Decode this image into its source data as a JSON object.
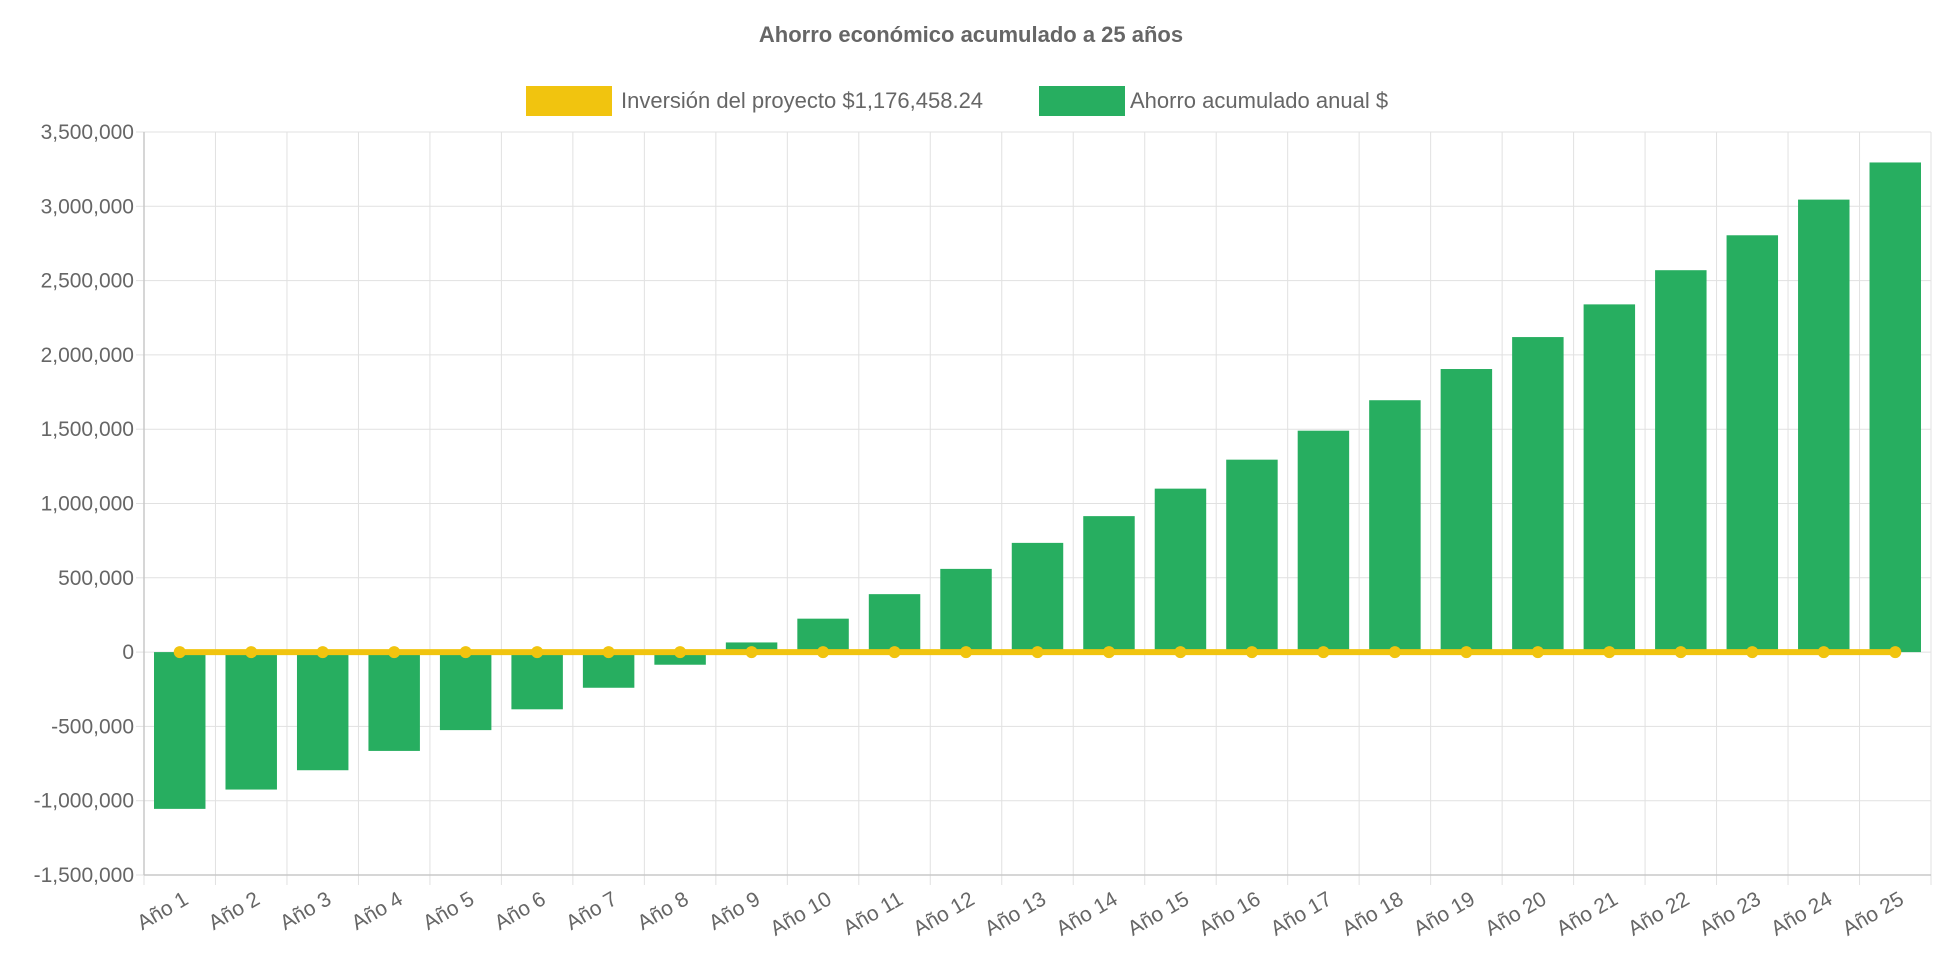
{
  "chart_data": {
    "type": "bar",
    "title": "Ahorro económico acumulado a 25 años",
    "categories": [
      "Año 1",
      "Año 2",
      "Año 3",
      "Año 4",
      "Año 5",
      "Año 6",
      "Año 7",
      "Año 8",
      "Año 9",
      "Año 10",
      "Año 11",
      "Año 12",
      "Año 13",
      "Año 14",
      "Año 15",
      "Año 16",
      "Año 17",
      "Año 18",
      "Año 19",
      "Año 20",
      "Año 21",
      "Año 22",
      "Año 23",
      "Año 24",
      "Año 25"
    ],
    "series": [
      {
        "name": "Inversión del proyecto $1,176,458.24",
        "type": "line",
        "color": "#f1c40f",
        "values": [
          0,
          0,
          0,
          0,
          0,
          0,
          0,
          0,
          0,
          0,
          0,
          0,
          0,
          0,
          0,
          0,
          0,
          0,
          0,
          0,
          0,
          0,
          0,
          0,
          0
        ]
      },
      {
        "name": "Ahorro acumulado anual $",
        "type": "bar",
        "color": "#27ae60",
        "values": [
          -1055000,
          -925000,
          -795000,
          -665000,
          -525000,
          -385000,
          -240000,
          -85000,
          65000,
          225000,
          390000,
          560000,
          735000,
          915000,
          1100000,
          1295000,
          1490000,
          1695000,
          1905000,
          2120000,
          2340000,
          2570000,
          2805000,
          3045000,
          3295000
        ]
      }
    ],
    "ylim": [
      -1500000,
      3500000
    ],
    "yticks": [
      3500000,
      3000000,
      2500000,
      2000000,
      1500000,
      1000000,
      500000,
      0,
      -500000,
      -1000000,
      -1500000
    ],
    "ytick_labels": [
      "3,500,000",
      "3,000,000",
      "2,500,000",
      "2,000,000",
      "1,500,000",
      "1,000,000",
      "500,000",
      "0",
      "-500,000",
      "-1,000,000",
      "-1,500,000"
    ],
    "xlabel": "",
    "ylabel": "",
    "grid": true,
    "legend_position": "top"
  }
}
